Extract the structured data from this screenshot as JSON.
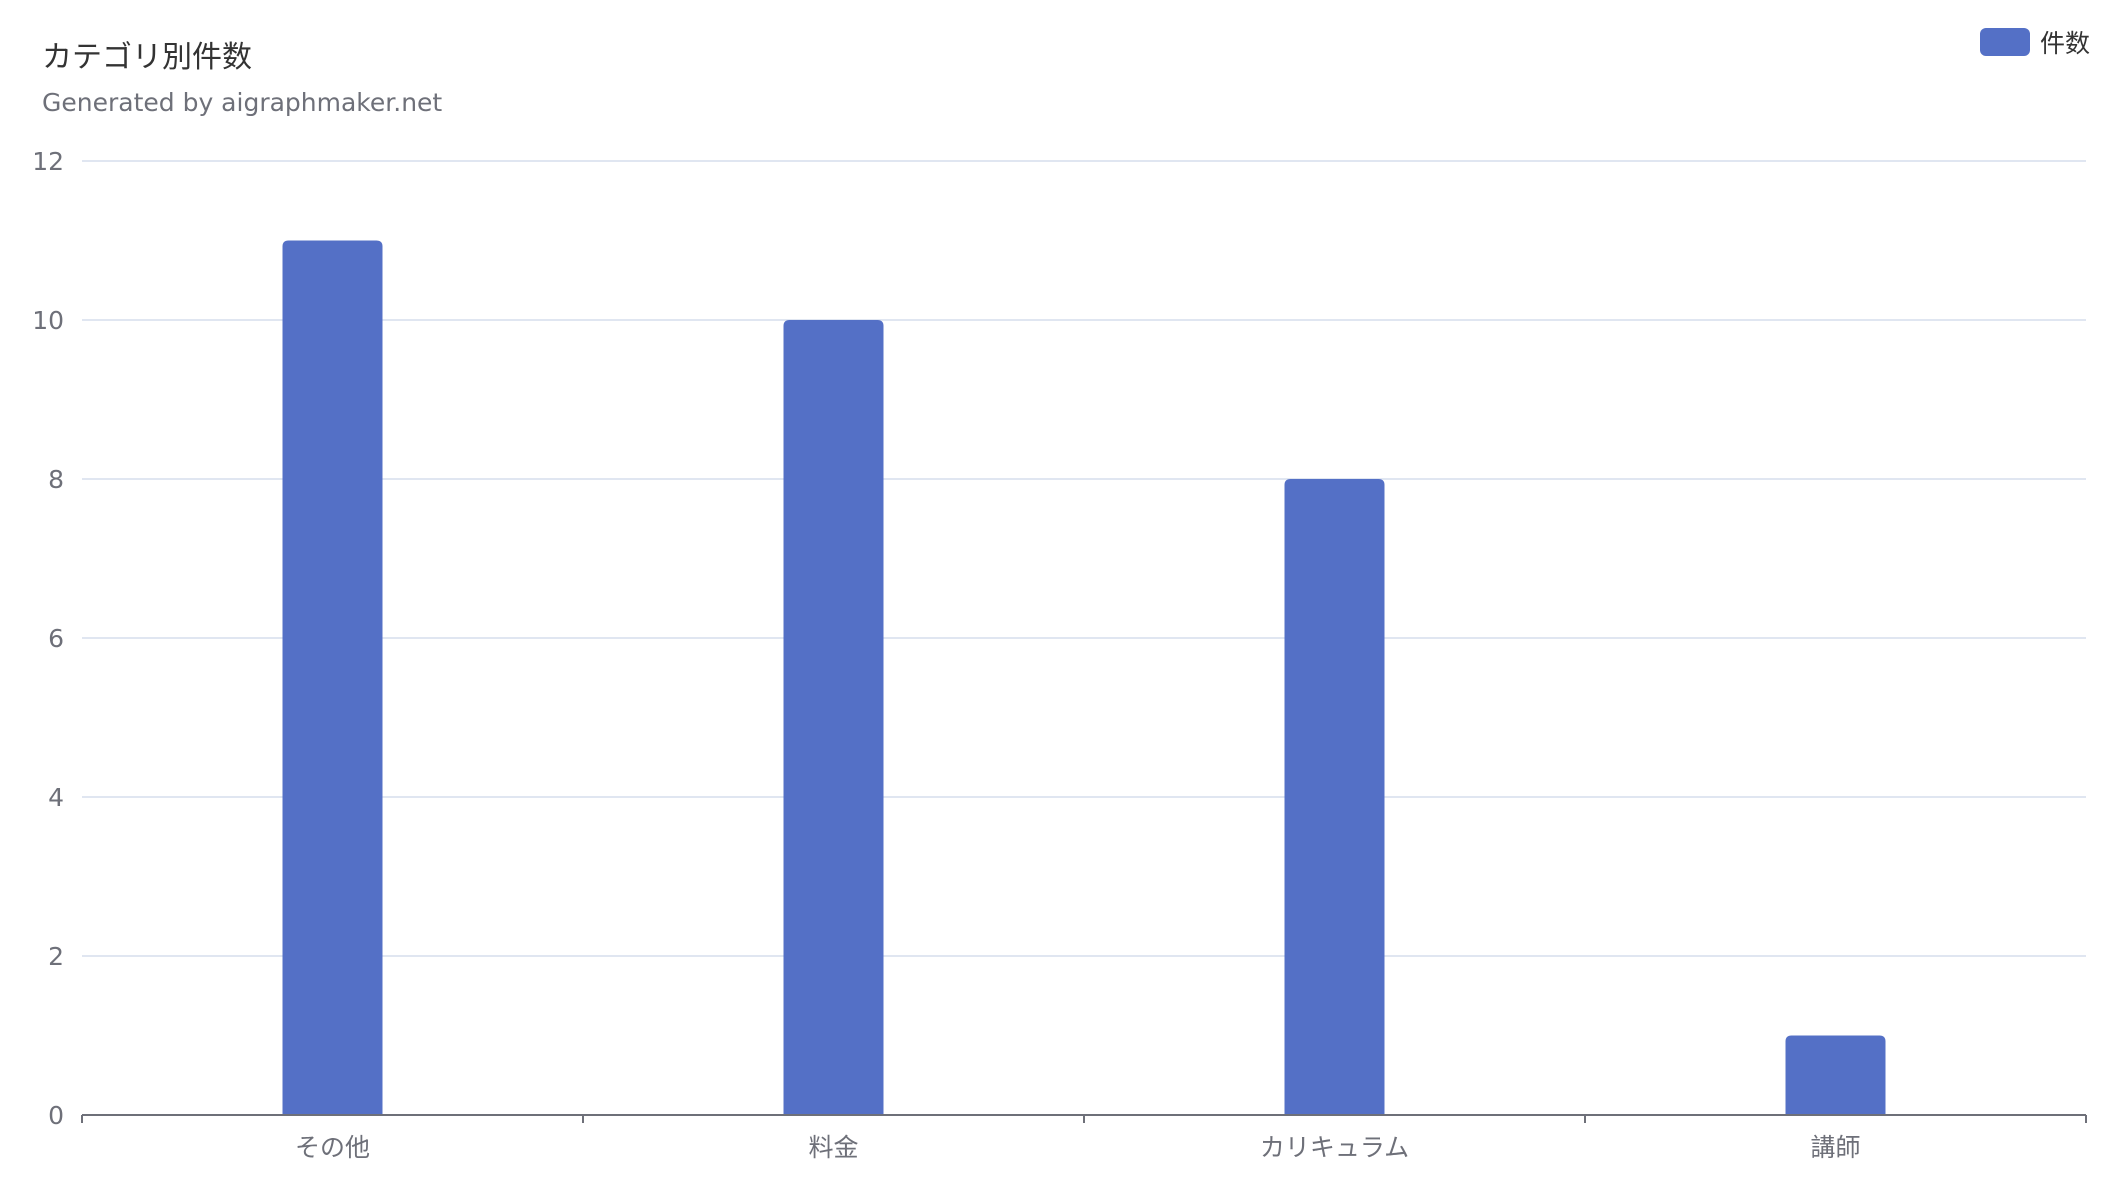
{
  "title": "カテゴリ別件数",
  "subtitle": "Generated by aigraphmaker.net",
  "legend": {
    "label": "件数"
  },
  "colors": {
    "bar": "#5470c6",
    "grid": "#e0e6f1",
    "axis": "#6e7079",
    "text": "#333333"
  },
  "chart_data": {
    "type": "bar",
    "title": "カテゴリ別件数",
    "subtitle": "Generated by aigraphmaker.net",
    "categories": [
      "その他",
      "料金",
      "カリキュラム",
      "講師"
    ],
    "series": [
      {
        "name": "件数",
        "values": [
          11,
          10,
          8,
          1
        ]
      }
    ],
    "ylim": [
      0,
      12
    ],
    "yticks": [
      0,
      2,
      4,
      6,
      8,
      10,
      12
    ],
    "grid": true,
    "legend_position": "top-right"
  }
}
